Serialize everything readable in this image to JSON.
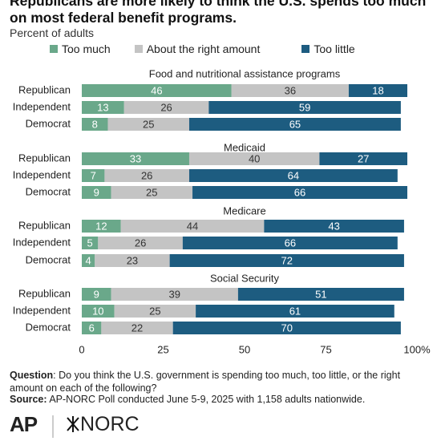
{
  "chart_data": {
    "type": "bar",
    "orientation": "horizontal",
    "stacked": true,
    "title": "Republicans are more likely to think the U.S. spends too much on most federal benefit programs.",
    "subtitle": "Percent of adults",
    "series": [
      {
        "name": "Too much",
        "color": "#6aa88a"
      },
      {
        "name": "About the right amount",
        "color": "#c4c4c4"
      },
      {
        "name": "Too little",
        "color": "#1d5c80"
      }
    ],
    "panels": [
      {
        "title": "Food and nutritional assistance programs",
        "categories": [
          "Republican",
          "Independent",
          "Democrat"
        ],
        "series": [
          {
            "values": [
              46,
              13,
              8
            ]
          },
          {
            "values": [
              36,
              26,
              25
            ]
          },
          {
            "values": [
              18,
              59,
              65
            ]
          }
        ]
      },
      {
        "title": "Medicaid",
        "categories": [
          "Republican",
          "Independent",
          "Democrat"
        ],
        "series": [
          {
            "values": [
              33,
              7,
              9
            ]
          },
          {
            "values": [
              40,
              26,
              25
            ]
          },
          {
            "values": [
              27,
              64,
              66
            ]
          }
        ]
      },
      {
        "title": "Medicare",
        "categories": [
          "Republican",
          "Independent",
          "Democrat"
        ],
        "series": [
          {
            "values": [
              12,
              5,
              4
            ]
          },
          {
            "values": [
              44,
              26,
              23
            ]
          },
          {
            "values": [
              43,
              66,
              72
            ]
          }
        ]
      },
      {
        "title": "Social Security",
        "categories": [
          "Republican",
          "Independent",
          "Democrat"
        ],
        "series": [
          {
            "values": [
              9,
              10,
              6
            ]
          },
          {
            "values": [
              39,
              25,
              22
            ]
          },
          {
            "values": [
              51,
              61,
              70
            ]
          }
        ]
      }
    ],
    "xlim": [
      0,
      100
    ],
    "xticks": [
      0,
      25,
      50,
      75,
      {
        "value": 100,
        "label": "100%"
      }
    ],
    "grid": false
  },
  "footer": {
    "question_label": "Question",
    "question": ": Do you think the U.S. government is spending too much, too little, or the right amount on each of the following?",
    "source_label": "Source:",
    "source": " AP-NORC Poll conducted June 5-9, 2025 with 1,158 adults nationwide.",
    "logo_left": "AP",
    "logo_right": "NORC"
  }
}
